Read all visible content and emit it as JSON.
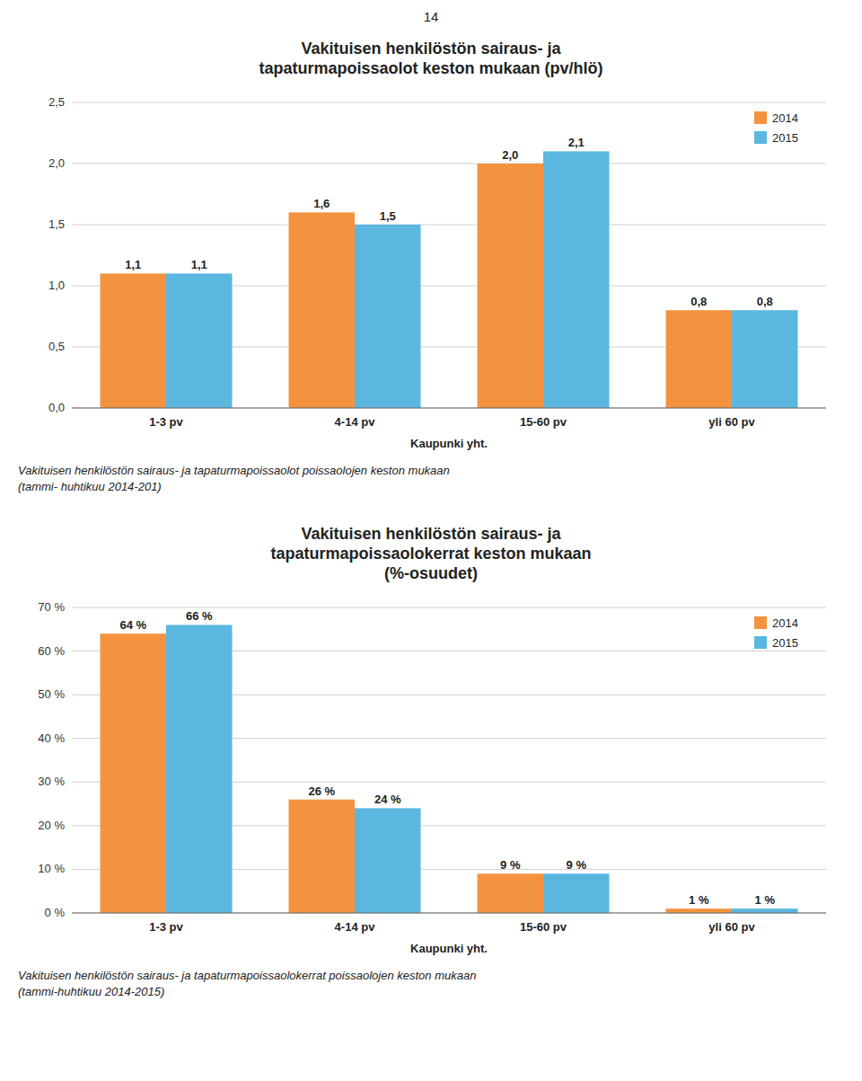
{
  "page_number": "14",
  "chart_data": [
    {
      "type": "bar",
      "title": "Vakituisen henkilöstön sairaus- ja\ntapaturmapoissaolot keston mukaan (pv/hlö)",
      "x_label": "Kaupunki yht.",
      "caption": "Vakituisen henkilöstön sairaus- ja tapaturmapoissaolot poissaolojen keston mukaan\n(tammi- huhtikuu 2014-201)",
      "categories": [
        "1-3 pv",
        "4-14 pv",
        "15-60 pv",
        "yli 60 pv"
      ],
      "series": [
        {
          "name": "2014",
          "color": "#F4933F",
          "values": [
            1.1,
            1.6,
            2.0,
            0.8
          ],
          "value_labels": [
            "1,1",
            "1,6",
            "2,0",
            "0,8"
          ]
        },
        {
          "name": "2015",
          "color": "#5BB7E0",
          "values": [
            1.1,
            1.5,
            2.1,
            0.8
          ],
          "value_labels": [
            "1,1",
            "1,5",
            "2,1",
            "0,8"
          ]
        }
      ],
      "ylim": [
        0,
        2.5
      ],
      "yticks": [
        {
          "value": 0.0,
          "label": "0,0"
        },
        {
          "value": 0.5,
          "label": "0,5"
        },
        {
          "value": 1.0,
          "label": "1,0"
        },
        {
          "value": 1.5,
          "label": "1,5"
        },
        {
          "value": 2.0,
          "label": "2,0"
        },
        {
          "value": 2.5,
          "label": "2,5"
        }
      ],
      "grid": true,
      "legend": "upper right",
      "data_labels": true
    },
    {
      "type": "bar",
      "title": "Vakituisen henkilöstön sairaus- ja\ntapaturmapoissaolokerrat keston mukaan\n(%-osuudet)",
      "x_label": "Kaupunki yht.",
      "caption": "Vakituisen henkilöstön sairaus- ja tapaturmapoissaolokerrat poissaolojen keston mukaan\n(tammi-huhtikuu 2014-2015)",
      "categories": [
        "1-3 pv",
        "4-14 pv",
        "15-60 pv",
        "yli 60 pv"
      ],
      "series": [
        {
          "name": "2014",
          "color": "#F4933F",
          "values": [
            64,
            26,
            9,
            1
          ],
          "value_labels": [
            "64 %",
            "26 %",
            "9 %",
            "1 %"
          ]
        },
        {
          "name": "2015",
          "color": "#5BB7E0",
          "values": [
            66,
            24,
            9,
            1
          ],
          "value_labels": [
            "66 %",
            "24 %",
            "9 %",
            "1 %"
          ]
        }
      ],
      "ylim": [
        0,
        70
      ],
      "yticks": [
        {
          "value": 0,
          "label": "0 %"
        },
        {
          "value": 10,
          "label": "10 %"
        },
        {
          "value": 20,
          "label": "20 %"
        },
        {
          "value": 30,
          "label": "30 %"
        },
        {
          "value": 40,
          "label": "40 %"
        },
        {
          "value": 50,
          "label": "50 %"
        },
        {
          "value": 60,
          "label": "60 %"
        },
        {
          "value": 70,
          "label": "70 %"
        }
      ],
      "grid": true,
      "legend": "upper right",
      "data_labels": true
    }
  ]
}
